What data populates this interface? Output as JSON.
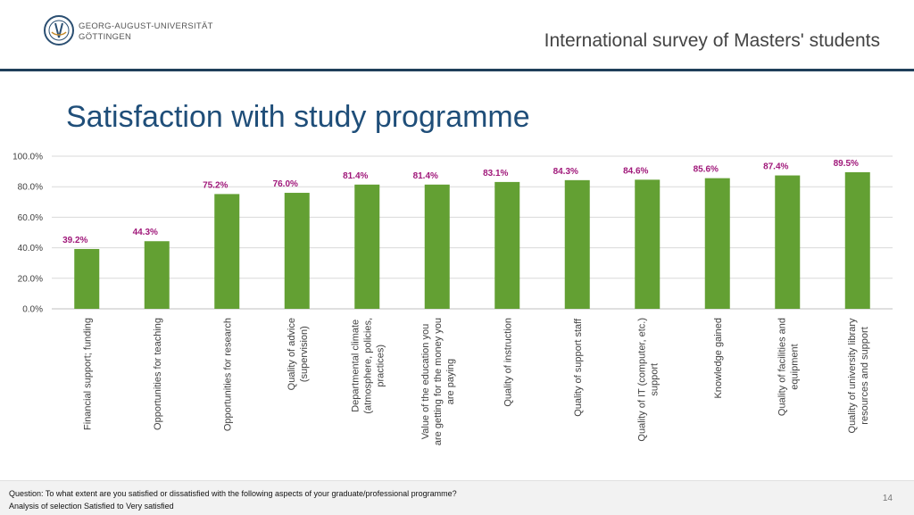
{
  "header": {
    "university_line1": "GEORG-AUGUST-UNIVERSITÄT",
    "university_line2": "GÖTTINGEN",
    "survey_title": "International survey of Masters' students"
  },
  "title": "Satisfaction with study programme",
  "footer": {
    "question": "Question: To what extent are you satisfied or dissatisfied with the following aspects of your graduate/professional programme?",
    "note": "Analysis of selection Satisfied to Very satisfied",
    "page_number": "14"
  },
  "colors": {
    "bar": "#63a033",
    "data_label": "#a0187a",
    "title": "#1f4e79",
    "header_rule": "#1f3f5a"
  },
  "chart_data": {
    "type": "bar",
    "categories": [
      "Financial support; funding",
      "Opportunities for teaching",
      "Opportunities for research",
      "Quality of advice (supervision)",
      "Departmental climate (atmosphere, policies, practices)",
      "Value of the education you are getting for the money you are paying",
      "Quality of instruction",
      "Quality of support staff",
      "Quality of IT (computer, etc.) support",
      "Knowledge gained",
      "Quality of facilities and equipment",
      "Quality of university library resources and support"
    ],
    "category_lines": [
      [
        "Financial support; funding"
      ],
      [
        "Opportunities for teaching"
      ],
      [
        "Opportunities for research"
      ],
      [
        "Quality of advice",
        "(supervision)"
      ],
      [
        "Departmental climate",
        "(atmosphere, policies,",
        "practices)"
      ],
      [
        "Value of the education you",
        "are getting for the money you",
        "are paying"
      ],
      [
        "Quality of instruction"
      ],
      [
        "Quality of support staff"
      ],
      [
        "Quality of IT (computer, etc.)",
        "support"
      ],
      [
        "Knowledge gained"
      ],
      [
        "Quality of facilities and",
        "equipment"
      ],
      [
        "Quality of university library",
        "resources and support"
      ]
    ],
    "values": [
      39.2,
      44.3,
      75.2,
      76.0,
      81.4,
      81.4,
      83.1,
      84.3,
      84.6,
      85.6,
      87.4,
      89.5
    ],
    "value_labels": [
      "39.2%",
      "44.3%",
      "75.2%",
      "76.0%",
      "81.4%",
      "81.4%",
      "83.1%",
      "84.3%",
      "84.6%",
      "85.6%",
      "87.4%",
      "89.5%"
    ],
    "yticks": [
      0,
      20,
      40,
      60,
      80,
      100
    ],
    "ytick_labels": [
      "0.0%",
      "20.0%",
      "40.0%",
      "60.0%",
      "80.0%",
      "100.0%"
    ],
    "ylim": [
      0,
      100
    ],
    "grid": true,
    "legend": "none"
  }
}
